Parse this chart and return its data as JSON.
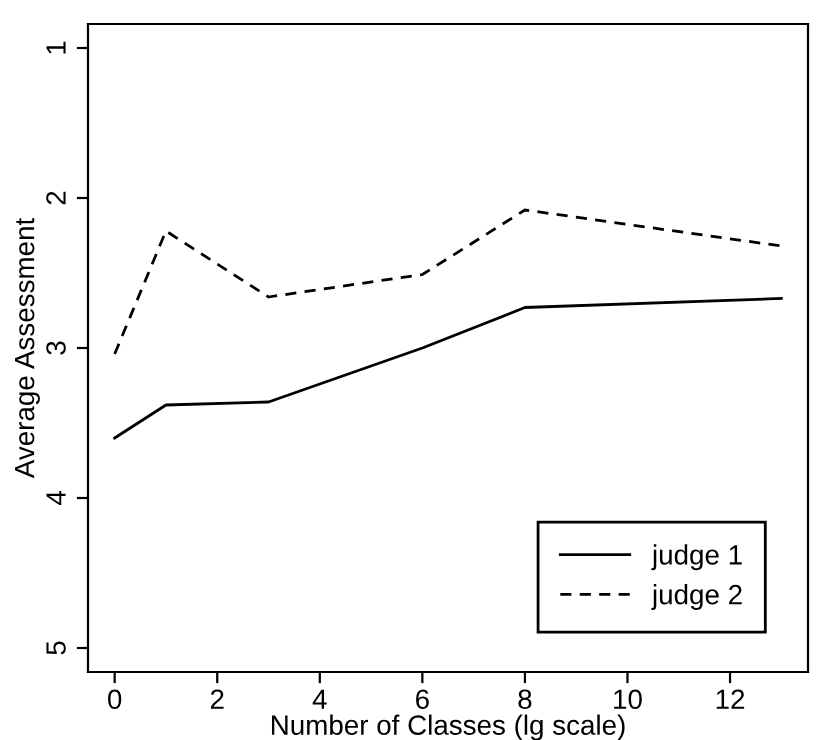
{
  "chart_data": {
    "type": "line",
    "xlabel": "Number of Classes (lg scale)",
    "ylabel": "Average Assessment",
    "x": [
      0,
      1,
      3,
      6,
      8,
      13
    ],
    "series": [
      {
        "name": "judge 1",
        "color": "#000000",
        "line_style": "solid",
        "values": [
          3.6,
          3.38,
          3.36,
          3.0,
          2.73,
          2.67
        ]
      },
      {
        "name": "judge 2",
        "color": "#000000",
        "line_style": "dashed",
        "values": [
          3.04,
          2.22,
          2.66,
          2.51,
          2.08,
          2.32
        ]
      }
    ],
    "xlim": [
      -0.52,
      13.52
    ],
    "xticks": [
      0,
      2,
      4,
      6,
      8,
      10,
      12
    ],
    "ylim": [
      5.16,
      0.84
    ],
    "yticks": [
      1,
      2,
      3,
      4,
      5
    ],
    "grid": false,
    "legend": "bottom right",
    "marker": "none"
  }
}
